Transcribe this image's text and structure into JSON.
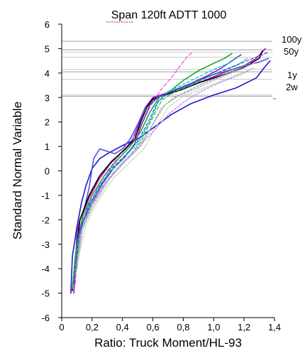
{
  "chart_data": {
    "type": "line",
    "title": "Span 120ft ADTT 1000",
    "xlabel": "Ratio: Truck Moment/HL-93",
    "ylabel": "Standard Normal Variable",
    "xlim": [
      0,
      1.4
    ],
    "ylim": [
      -6,
      6
    ],
    "x_ticks": [
      0,
      0.2,
      0.4,
      0.6,
      0.8,
      1.0,
      1.2,
      1.4
    ],
    "x_tick_labels": [
      "0",
      "0,2",
      "0,4",
      "0,6",
      "0,8",
      "1,0",
      "1,2",
      "1,4"
    ],
    "y_ticks": [
      -6,
      -5,
      -4,
      -3,
      -2,
      -1,
      0,
      1,
      2,
      3,
      4,
      5,
      6
    ],
    "y_tick_labels": [
      "-6",
      "-5",
      "-4",
      "-3",
      "-2",
      "-1",
      "0",
      "1",
      "2",
      "3",
      "4",
      "5",
      "6"
    ],
    "grid": false,
    "reference_lines": [
      {
        "label": "100y",
        "y": 5.3
      },
      {
        "label": "50y",
        "y": 4.95
      },
      {
        "label": "1y",
        "y": 4.05
      },
      {
        "label": "2w",
        "y": 3.05
      }
    ],
    "extra_reference_lines": [
      4.85,
      4.65,
      4.15,
      3.75,
      3.1
    ],
    "series": [
      {
        "color": "#cc00cc",
        "dash": "",
        "points": [
          [
            0.08,
            -5.0
          ],
          [
            0.09,
            -4.0
          ],
          [
            0.1,
            -2.5
          ],
          [
            0.12,
            -2.0
          ],
          [
            0.18,
            -1.1
          ],
          [
            0.25,
            -0.3
          ],
          [
            0.32,
            0.3
          ],
          [
            0.4,
            0.8
          ],
          [
            0.46,
            1.2
          ],
          [
            0.5,
            1.8
          ],
          [
            0.55,
            2.6
          ],
          [
            0.6,
            3.0
          ],
          [
            0.7,
            3.2
          ],
          [
            0.8,
            3.35
          ],
          [
            0.9,
            3.6
          ],
          [
            1.0,
            3.85
          ],
          [
            1.1,
            4.1
          ],
          [
            1.2,
            4.3
          ],
          [
            1.28,
            4.6
          ],
          [
            1.34,
            5.0
          ]
        ]
      },
      {
        "color": "#e060e0",
        "dash": "5,3",
        "points": [
          [
            0.09,
            -4.6
          ],
          [
            0.11,
            -2.5
          ],
          [
            0.2,
            -1.0
          ],
          [
            0.3,
            0.0
          ],
          [
            0.4,
            0.8
          ],
          [
            0.5,
            1.6
          ],
          [
            0.58,
            2.6
          ],
          [
            0.65,
            3.3
          ],
          [
            0.72,
            3.8
          ],
          [
            0.78,
            4.3
          ],
          [
            0.83,
            4.7
          ],
          [
            0.86,
            4.85
          ]
        ]
      },
      {
        "color": "#1a1acc",
        "dash": "",
        "points": [
          [
            0.06,
            -5.0
          ],
          [
            0.07,
            -3.5
          ],
          [
            0.1,
            -2.3
          ],
          [
            0.13,
            -1.3
          ],
          [
            0.16,
            -0.6
          ],
          [
            0.2,
            0.1
          ],
          [
            0.25,
            0.5
          ],
          [
            0.3,
            0.7
          ],
          [
            0.36,
            0.9
          ],
          [
            0.42,
            1.1
          ],
          [
            0.5,
            1.3
          ],
          [
            0.6,
            1.75
          ],
          [
            0.72,
            2.3
          ],
          [
            0.85,
            2.75
          ],
          [
            1.0,
            3.1
          ],
          [
            1.15,
            3.4
          ],
          [
            1.28,
            3.8
          ],
          [
            1.33,
            4.2
          ],
          [
            1.37,
            4.5
          ]
        ]
      },
      {
        "color": "#5050dd",
        "dash": "",
        "points": [
          [
            0.1,
            -3.5
          ],
          [
            0.12,
            -2.5
          ],
          [
            0.15,
            -1.5
          ],
          [
            0.18,
            -0.7
          ],
          [
            0.21,
            0.5
          ],
          [
            0.25,
            0.9
          ],
          [
            0.3,
            0.8
          ],
          [
            0.35,
            0.7
          ],
          [
            0.4,
            0.9
          ],
          [
            0.45,
            1.3
          ],
          [
            0.5,
            1.9
          ],
          [
            0.55,
            2.6
          ],
          [
            0.6,
            2.9
          ],
          [
            0.7,
            3.2
          ],
          [
            0.8,
            3.4
          ],
          [
            0.9,
            3.7
          ],
          [
            1.0,
            3.95
          ],
          [
            1.1,
            4.1
          ],
          [
            1.2,
            4.3
          ],
          [
            1.3,
            4.45
          ],
          [
            1.36,
            4.6
          ]
        ]
      },
      {
        "color": "#000000",
        "dash": "",
        "points": [
          [
            0.07,
            -4.9
          ],
          [
            0.09,
            -3.5
          ],
          [
            0.12,
            -2.0
          ],
          [
            0.18,
            -1.0
          ],
          [
            0.25,
            -0.2
          ],
          [
            0.33,
            0.4
          ],
          [
            0.42,
            0.9
          ],
          [
            0.48,
            1.3
          ],
          [
            0.52,
            2.0
          ],
          [
            0.56,
            2.6
          ],
          [
            0.6,
            2.95
          ],
          [
            0.68,
            3.1
          ],
          [
            0.78,
            3.3
          ],
          [
            0.9,
            3.6
          ],
          [
            1.0,
            3.8
          ],
          [
            1.1,
            4.0
          ],
          [
            1.2,
            4.25
          ],
          [
            1.3,
            4.6
          ],
          [
            1.32,
            4.9
          ]
        ]
      },
      {
        "color": "#22aa22",
        "dash": "",
        "points": [
          [
            0.07,
            -4.8
          ],
          [
            0.1,
            -3.0
          ],
          [
            0.14,
            -1.8
          ],
          [
            0.2,
            -1.0
          ],
          [
            0.28,
            -0.2
          ],
          [
            0.36,
            0.4
          ],
          [
            0.45,
            1.0
          ],
          [
            0.52,
            1.6
          ],
          [
            0.58,
            2.4
          ],
          [
            0.64,
            3.0
          ],
          [
            0.72,
            3.3
          ],
          [
            0.8,
            3.7
          ],
          [
            0.9,
            4.1
          ],
          [
            1.0,
            4.4
          ],
          [
            1.07,
            4.6
          ],
          [
            1.12,
            4.8
          ]
        ]
      },
      {
        "color": "#6633cc",
        "dash": "",
        "points": [
          [
            0.09,
            -4.0
          ],
          [
            0.12,
            -2.4
          ],
          [
            0.18,
            -1.5
          ],
          [
            0.26,
            -0.6
          ],
          [
            0.34,
            0.1
          ],
          [
            0.42,
            0.6
          ],
          [
            0.48,
            1.1
          ],
          [
            0.52,
            1.8
          ],
          [
            0.58,
            2.7
          ],
          [
            0.64,
            3.05
          ],
          [
            0.74,
            3.3
          ],
          [
            0.84,
            3.55
          ],
          [
            0.96,
            3.9
          ],
          [
            1.05,
            4.2
          ],
          [
            1.12,
            4.5
          ],
          [
            1.18,
            4.75
          ]
        ]
      },
      {
        "color": "#00cccc",
        "dash": "4,3",
        "points": [
          [
            0.08,
            -4.5
          ],
          [
            0.11,
            -2.8
          ],
          [
            0.16,
            -1.7
          ],
          [
            0.23,
            -0.8
          ],
          [
            0.31,
            -0.1
          ],
          [
            0.4,
            0.5
          ],
          [
            0.5,
            1.1
          ],
          [
            0.58,
            2.0
          ],
          [
            0.64,
            2.9
          ],
          [
            0.72,
            3.3
          ],
          [
            0.82,
            3.6
          ],
          [
            0.92,
            3.9
          ],
          [
            1.02,
            4.2
          ],
          [
            1.1,
            4.4
          ],
          [
            1.16,
            4.65
          ]
        ]
      },
      {
        "color": "#44bb44",
        "dash": "5,3",
        "points": [
          [
            0.09,
            -4.2
          ],
          [
            0.12,
            -2.6
          ],
          [
            0.18,
            -1.6
          ],
          [
            0.26,
            -0.7
          ],
          [
            0.35,
            0.0
          ],
          [
            0.44,
            0.55
          ],
          [
            0.52,
            1.2
          ],
          [
            0.6,
            2.2
          ],
          [
            0.66,
            2.9
          ],
          [
            0.75,
            3.25
          ],
          [
            0.85,
            3.5
          ],
          [
            0.95,
            3.8
          ],
          [
            1.05,
            4.05
          ],
          [
            1.15,
            4.3
          ],
          [
            1.22,
            4.6
          ]
        ]
      },
      {
        "color": "#9999bb",
        "dash": "3,2",
        "points": [
          [
            0.1,
            -4.0
          ],
          [
            0.13,
            -2.5
          ],
          [
            0.2,
            -1.4
          ],
          [
            0.3,
            -0.4
          ],
          [
            0.4,
            0.3
          ],
          [
            0.5,
            0.9
          ],
          [
            0.58,
            1.7
          ],
          [
            0.66,
            2.6
          ],
          [
            0.74,
            3.0
          ],
          [
            0.84,
            3.3
          ],
          [
            0.94,
            3.6
          ],
          [
            1.04,
            3.85
          ],
          [
            1.14,
            4.1
          ],
          [
            1.24,
            4.4
          ]
        ]
      },
      {
        "color": "#bbbbbb",
        "dash": "3,2",
        "points": [
          [
            0.11,
            -3.6
          ],
          [
            0.14,
            -2.3
          ],
          [
            0.22,
            -1.3
          ],
          [
            0.32,
            -0.3
          ],
          [
            0.42,
            0.4
          ],
          [
            0.52,
            1.0
          ],
          [
            0.6,
            1.9
          ],
          [
            0.68,
            2.7
          ],
          [
            0.78,
            3.1
          ],
          [
            0.9,
            3.4
          ],
          [
            1.0,
            3.7
          ],
          [
            1.1,
            3.95
          ],
          [
            1.2,
            4.2
          ],
          [
            1.28,
            4.45
          ]
        ]
      },
      {
        "color": "#aaddaa",
        "dash": "2,2",
        "points": [
          [
            0.12,
            -3.3
          ],
          [
            0.16,
            -2.2
          ],
          [
            0.24,
            -1.2
          ],
          [
            0.34,
            -0.3
          ],
          [
            0.44,
            0.3
          ],
          [
            0.54,
            0.9
          ],
          [
            0.62,
            1.8
          ],
          [
            0.7,
            2.6
          ],
          [
            0.8,
            3.05
          ],
          [
            0.92,
            3.35
          ],
          [
            1.02,
            3.6
          ],
          [
            1.12,
            3.85
          ],
          [
            1.22,
            4.1
          ]
        ]
      },
      {
        "color": "#cc88ee",
        "dash": "3,2",
        "points": [
          [
            0.1,
            -3.8
          ],
          [
            0.13,
            -2.4
          ],
          [
            0.2,
            -1.3
          ],
          [
            0.3,
            -0.4
          ],
          [
            0.4,
            0.35
          ],
          [
            0.5,
            0.95
          ],
          [
            0.6,
            1.6
          ],
          [
            0.7,
            2.3
          ],
          [
            0.8,
            2.8
          ],
          [
            0.9,
            3.2
          ],
          [
            1.0,
            3.5
          ],
          [
            1.1,
            3.75
          ],
          [
            1.2,
            4.0
          ],
          [
            1.26,
            4.2
          ]
        ]
      },
      {
        "color": "#2255ee",
        "dash": "4,3",
        "points": [
          [
            0.08,
            -4.6
          ],
          [
            0.11,
            -2.7
          ],
          [
            0.17,
            -1.5
          ],
          [
            0.25,
            -0.6
          ],
          [
            0.33,
            0.1
          ],
          [
            0.42,
            0.65
          ],
          [
            0.5,
            1.2
          ],
          [
            0.57,
            2.0
          ],
          [
            0.63,
            2.8
          ],
          [
            0.7,
            3.2
          ],
          [
            0.8,
            3.45
          ],
          [
            0.9,
            3.7
          ],
          [
            1.0,
            3.95
          ],
          [
            1.1,
            4.2
          ],
          [
            1.2,
            4.45
          ],
          [
            1.3,
            4.7
          ],
          [
            1.36,
            4.85
          ]
        ]
      }
    ]
  }
}
